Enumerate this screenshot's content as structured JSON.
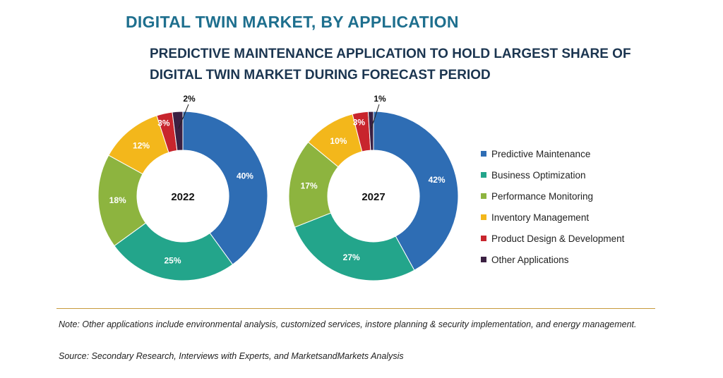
{
  "title": "DIGITAL TWIN MARKET, BY APPLICATION",
  "subtitle": "PREDICTIVE MAINTENANCE APPLICATION TO HOLD LARGEST SHARE OF DIGITAL TWIN MARKET DURING FORECAST PERIOD",
  "note": "Note: Other applications include environmental analysis, customized services, instore planning & security implementation, and energy management.",
  "source": "Source: Secondary Research, Interviews with Experts, and MarketsandMarkets Analysis",
  "chart_data": {
    "type": "pie",
    "style": "donut",
    "legend_position": "right",
    "categories": [
      "Predictive Maintenance",
      "Business Optimization",
      "Performance Monitoring",
      "Inventory Management",
      "Product Design & Development",
      "Other Applications"
    ],
    "colors": [
      "#2e6db4",
      "#23a58b",
      "#8db43f",
      "#f3b71b",
      "#c8252d",
      "#3b2042"
    ],
    "charts": [
      {
        "center_label": "2022",
        "values": [
          40,
          25,
          18,
          12,
          3,
          2
        ],
        "labels": [
          "40%",
          "25%",
          "18%",
          "12%",
          "3%",
          "2%"
        ]
      },
      {
        "center_label": "2027",
        "values": [
          42,
          27,
          17,
          10,
          3,
          1
        ],
        "labels": [
          "42%",
          "27%",
          "17%",
          "10%",
          "3%",
          "1%"
        ]
      }
    ]
  }
}
